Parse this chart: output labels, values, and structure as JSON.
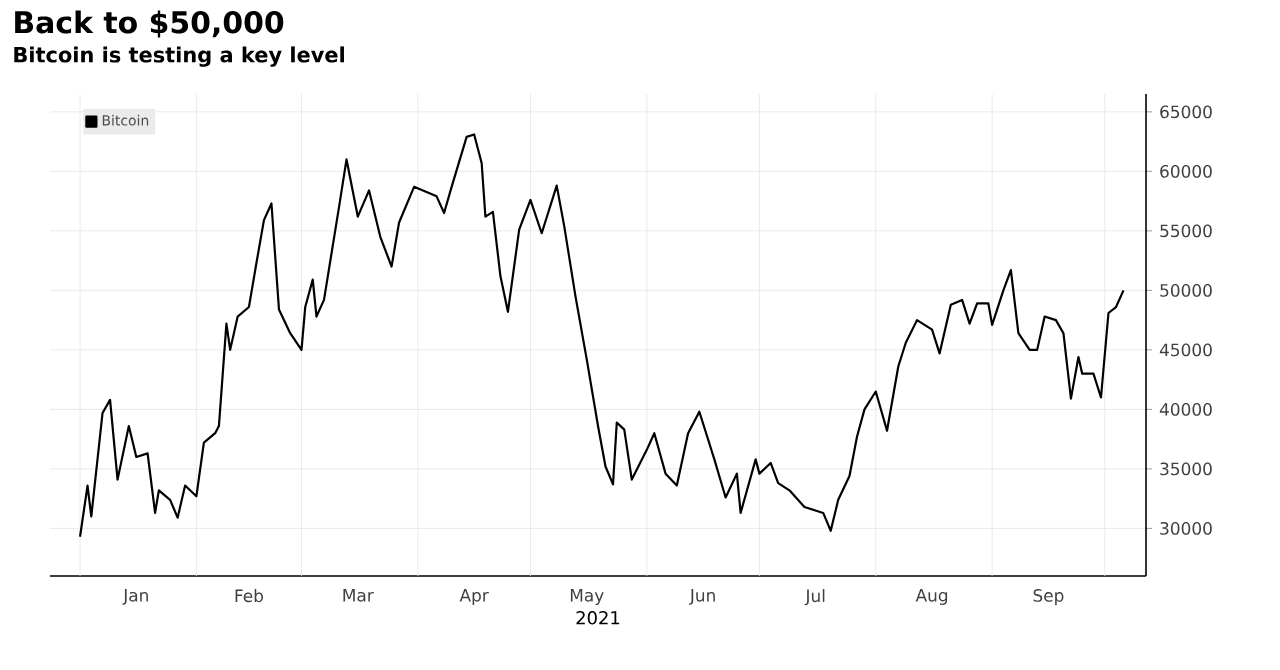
{
  "chart_data": {
    "type": "line",
    "title": "Back to $50,000",
    "subtitle": "Bitcoin is testing a key level",
    "xlabel": "2021",
    "x": [
      "2021-01-01",
      "2021-01-03",
      "2021-01-04",
      "2021-01-07",
      "2021-01-09",
      "2021-01-11",
      "2021-01-14",
      "2021-01-16",
      "2021-01-19",
      "2021-01-21",
      "2021-01-22",
      "2021-01-25",
      "2021-01-27",
      "2021-01-29",
      "2021-02-01",
      "2021-02-03",
      "2021-02-06",
      "2021-02-07",
      "2021-02-09",
      "2021-02-10",
      "2021-02-12",
      "2021-02-15",
      "2021-02-17",
      "2021-02-19",
      "2021-02-21",
      "2021-02-23",
      "2021-02-26",
      "2021-03-01",
      "2021-03-02",
      "2021-03-04",
      "2021-03-05",
      "2021-03-07",
      "2021-03-11",
      "2021-03-13",
      "2021-03-16",
      "2021-03-19",
      "2021-03-22",
      "2021-03-25",
      "2021-03-27",
      "2021-03-31",
      "2021-04-06",
      "2021-04-08",
      "2021-04-10",
      "2021-04-14",
      "2021-04-16",
      "2021-04-18",
      "2021-04-19",
      "2021-04-21",
      "2021-04-23",
      "2021-04-25",
      "2021-04-28",
      "2021-05-01",
      "2021-05-04",
      "2021-05-08",
      "2021-05-10",
      "2021-05-13",
      "2021-05-16",
      "2021-05-19",
      "2021-05-21",
      "2021-05-23",
      "2021-05-24",
      "2021-05-26",
      "2021-05-28",
      "2021-06-01",
      "2021-06-03",
      "2021-06-06",
      "2021-06-09",
      "2021-06-12",
      "2021-06-15",
      "2021-06-19",
      "2021-06-22",
      "2021-06-25",
      "2021-06-26",
      "2021-06-30",
      "2021-07-01",
      "2021-07-04",
      "2021-07-06",
      "2021-07-09",
      "2021-07-13",
      "2021-07-18",
      "2021-07-20",
      "2021-07-22",
      "2021-07-25",
      "2021-07-27",
      "2021-07-29",
      "2021-08-01",
      "2021-08-04",
      "2021-08-07",
      "2021-08-09",
      "2021-08-12",
      "2021-08-16",
      "2021-08-18",
      "2021-08-21",
      "2021-08-24",
      "2021-08-26",
      "2021-08-28",
      "2021-08-31",
      "2021-09-01",
      "2021-09-04",
      "2021-09-06",
      "2021-09-08",
      "2021-09-11",
      "2021-09-13",
      "2021-09-15",
      "2021-09-18",
      "2021-09-20",
      "2021-09-22",
      "2021-09-24",
      "2021-09-25",
      "2021-09-28",
      "2021-09-30",
      "2021-10-02",
      "2021-10-04",
      "2021-10-06"
    ],
    "series": [
      {
        "name": "Bitcoin",
        "color": "#000000",
        "values": [
          29300,
          33600,
          31000,
          39700,
          40800,
          34100,
          38600,
          36000,
          36300,
          31300,
          33200,
          32400,
          30900,
          33600,
          32700,
          37200,
          38000,
          38600,
          47200,
          45000,
          47800,
          48600,
          52300,
          55900,
          57300,
          48400,
          46400,
          45000,
          48600,
          50900,
          47800,
          49200,
          57000,
          61000,
          56200,
          58400,
          54500,
          52000,
          55700,
          58700,
          57900,
          56500,
          58700,
          62900,
          63100,
          60700,
          56200,
          56600,
          51200,
          48200,
          55100,
          57600,
          54800,
          58800,
          55400,
          49500,
          44200,
          38600,
          35200,
          33700,
          38900,
          38300,
          34100,
          36600,
          38000,
          34600,
          33600,
          38000,
          39800,
          35800,
          32600,
          34600,
          31300,
          35800,
          34600,
          35500,
          33800,
          33200,
          31800,
          31300,
          29800,
          32400,
          34400,
          37700,
          40000,
          41500,
          38200,
          43600,
          45600,
          47500,
          46700,
          44700,
          48800,
          49200,
          47200,
          48900,
          48900,
          47100,
          50000,
          51700,
          46400,
          45000,
          45000,
          47800,
          47500,
          46400,
          40900,
          44400,
          43000,
          43000,
          41000,
          48100,
          48600,
          50000
        ]
      }
    ],
    "xlim": [
      "2020-12-24",
      "2021-10-12"
    ],
    "xticks": [
      {
        "value": "2021-01-01",
        "label": null
      },
      {
        "value": "2021-01-16",
        "label": "Jan"
      },
      {
        "value": "2021-02-01",
        "label": null
      },
      {
        "value": "2021-02-15",
        "label": "Feb"
      },
      {
        "value": "2021-03-01",
        "label": null
      },
      {
        "value": "2021-03-16",
        "label": "Mar"
      },
      {
        "value": "2021-04-01",
        "label": null
      },
      {
        "value": "2021-04-16",
        "label": "Apr"
      },
      {
        "value": "2021-05-01",
        "label": null
      },
      {
        "value": "2021-05-16",
        "label": "May"
      },
      {
        "value": "2021-06-01",
        "label": null
      },
      {
        "value": "2021-06-16",
        "label": "Jun"
      },
      {
        "value": "2021-07-01",
        "label": null
      },
      {
        "value": "2021-07-16",
        "label": "Jul"
      },
      {
        "value": "2021-08-01",
        "label": null
      },
      {
        "value": "2021-08-16",
        "label": "Aug"
      },
      {
        "value": "2021-09-01",
        "label": null
      },
      {
        "value": "2021-09-16",
        "label": "Sep"
      },
      {
        "value": "2021-10-01",
        "label": null
      }
    ],
    "ylim": [
      26000,
      66500
    ],
    "yticks": [
      30000,
      35000,
      40000,
      45000,
      50000,
      55000,
      60000,
      65000
    ],
    "grid": true,
    "legend": "top left",
    "marker": "none",
    "line_style": "solid"
  }
}
